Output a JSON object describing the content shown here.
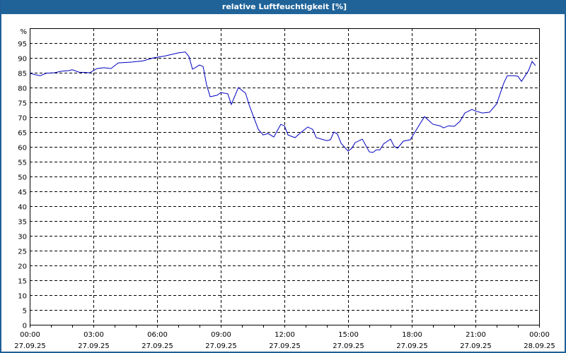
{
  "window": {
    "title": "relative Luftfeuchtigkeit [%]",
    "colors": {
      "titlebar": "#1f6399",
      "border": "#1f5f96",
      "title_text": "#ffffff",
      "series_line": "#0000c0",
      "grid": "#000000"
    }
  },
  "chart_data": {
    "type": "line",
    "title": "relative Luftfeuchtigkeit [%]",
    "xlabel": "",
    "ylabel": "%",
    "ylim": [
      0,
      100
    ],
    "y_ticks": [
      0,
      5,
      10,
      15,
      20,
      25,
      30,
      35,
      40,
      45,
      50,
      55,
      60,
      65,
      70,
      75,
      80,
      85,
      90,
      95
    ],
    "y_unit_label": "%",
    "x_ticks": [
      {
        "time": "00:00",
        "date": "27.09.25"
      },
      {
        "time": "03:00",
        "date": "27.09.25"
      },
      {
        "time": "06:00",
        "date": "27.09.25"
      },
      {
        "time": "09:00",
        "date": "27.09.25"
      },
      {
        "time": "12:00",
        "date": "27.09.25"
      },
      {
        "time": "15:00",
        "date": "27.09.25"
      },
      {
        "time": "18:00",
        "date": "27.09.25"
      },
      {
        "time": "21:00",
        "date": "27.09.25"
      },
      {
        "time": "00:00",
        "date": "28.09.25"
      }
    ],
    "xlim_hours": [
      0,
      24
    ],
    "grid": true,
    "legend": null,
    "series": [
      {
        "name": "relative Luftfeuchtigkeit",
        "color": "#0000c0",
        "x_hours": [
          0.0,
          0.27,
          0.5,
          0.77,
          1.17,
          1.5,
          1.83,
          2.0,
          2.33,
          2.83,
          3.17,
          3.5,
          3.83,
          4.17,
          4.83,
          5.33,
          5.83,
          6.4,
          7.0,
          7.33,
          7.5,
          7.67,
          8.0,
          8.17,
          8.33,
          8.5,
          8.83,
          9.0,
          9.33,
          9.5,
          9.83,
          10.17,
          10.33,
          10.5,
          10.77,
          11.0,
          11.23,
          11.5,
          11.83,
          12.0,
          12.17,
          12.5,
          12.77,
          13.1,
          13.33,
          13.5,
          14.0,
          14.17,
          14.33,
          14.5,
          14.67,
          15.0,
          15.17,
          15.33,
          15.67,
          16.0,
          16.17,
          16.33,
          16.5,
          16.67,
          17.0,
          17.17,
          17.33,
          17.6,
          17.93,
          18.33,
          18.6,
          19.0,
          19.33,
          19.5,
          19.73,
          20.0,
          20.27,
          20.5,
          20.83,
          21.0,
          21.33,
          21.67,
          22.0,
          22.33,
          22.5,
          22.83,
          23.0,
          23.17,
          23.5,
          23.67,
          23.83
        ],
        "values": [
          84.8,
          84.3,
          84.0,
          84.8,
          85.0,
          85.5,
          85.7,
          86.0,
          85.2,
          85.0,
          86.4,
          86.7,
          86.4,
          88.3,
          88.6,
          89.0,
          90.0,
          90.7,
          91.7,
          92.0,
          90.5,
          86.2,
          87.6,
          87.1,
          81.0,
          76.9,
          77.4,
          78.3,
          77.9,
          74.3,
          80.0,
          78.1,
          74.3,
          71.0,
          65.9,
          64.0,
          64.5,
          63.3,
          67.6,
          67.1,
          64.0,
          63.1,
          64.8,
          66.7,
          65.9,
          63.1,
          62.1,
          62.4,
          65.0,
          64.3,
          61.2,
          58.6,
          59.5,
          61.4,
          62.6,
          58.3,
          58.1,
          59.0,
          59.0,
          61.0,
          62.6,
          60.2,
          59.5,
          61.9,
          62.4,
          67.1,
          70.2,
          67.6,
          67.1,
          66.4,
          67.1,
          66.9,
          68.6,
          71.4,
          72.6,
          72.1,
          71.4,
          71.7,
          74.5,
          81.4,
          84.0,
          84.0,
          83.8,
          82.1,
          85.7,
          88.8,
          87.4
        ]
      }
    ]
  }
}
